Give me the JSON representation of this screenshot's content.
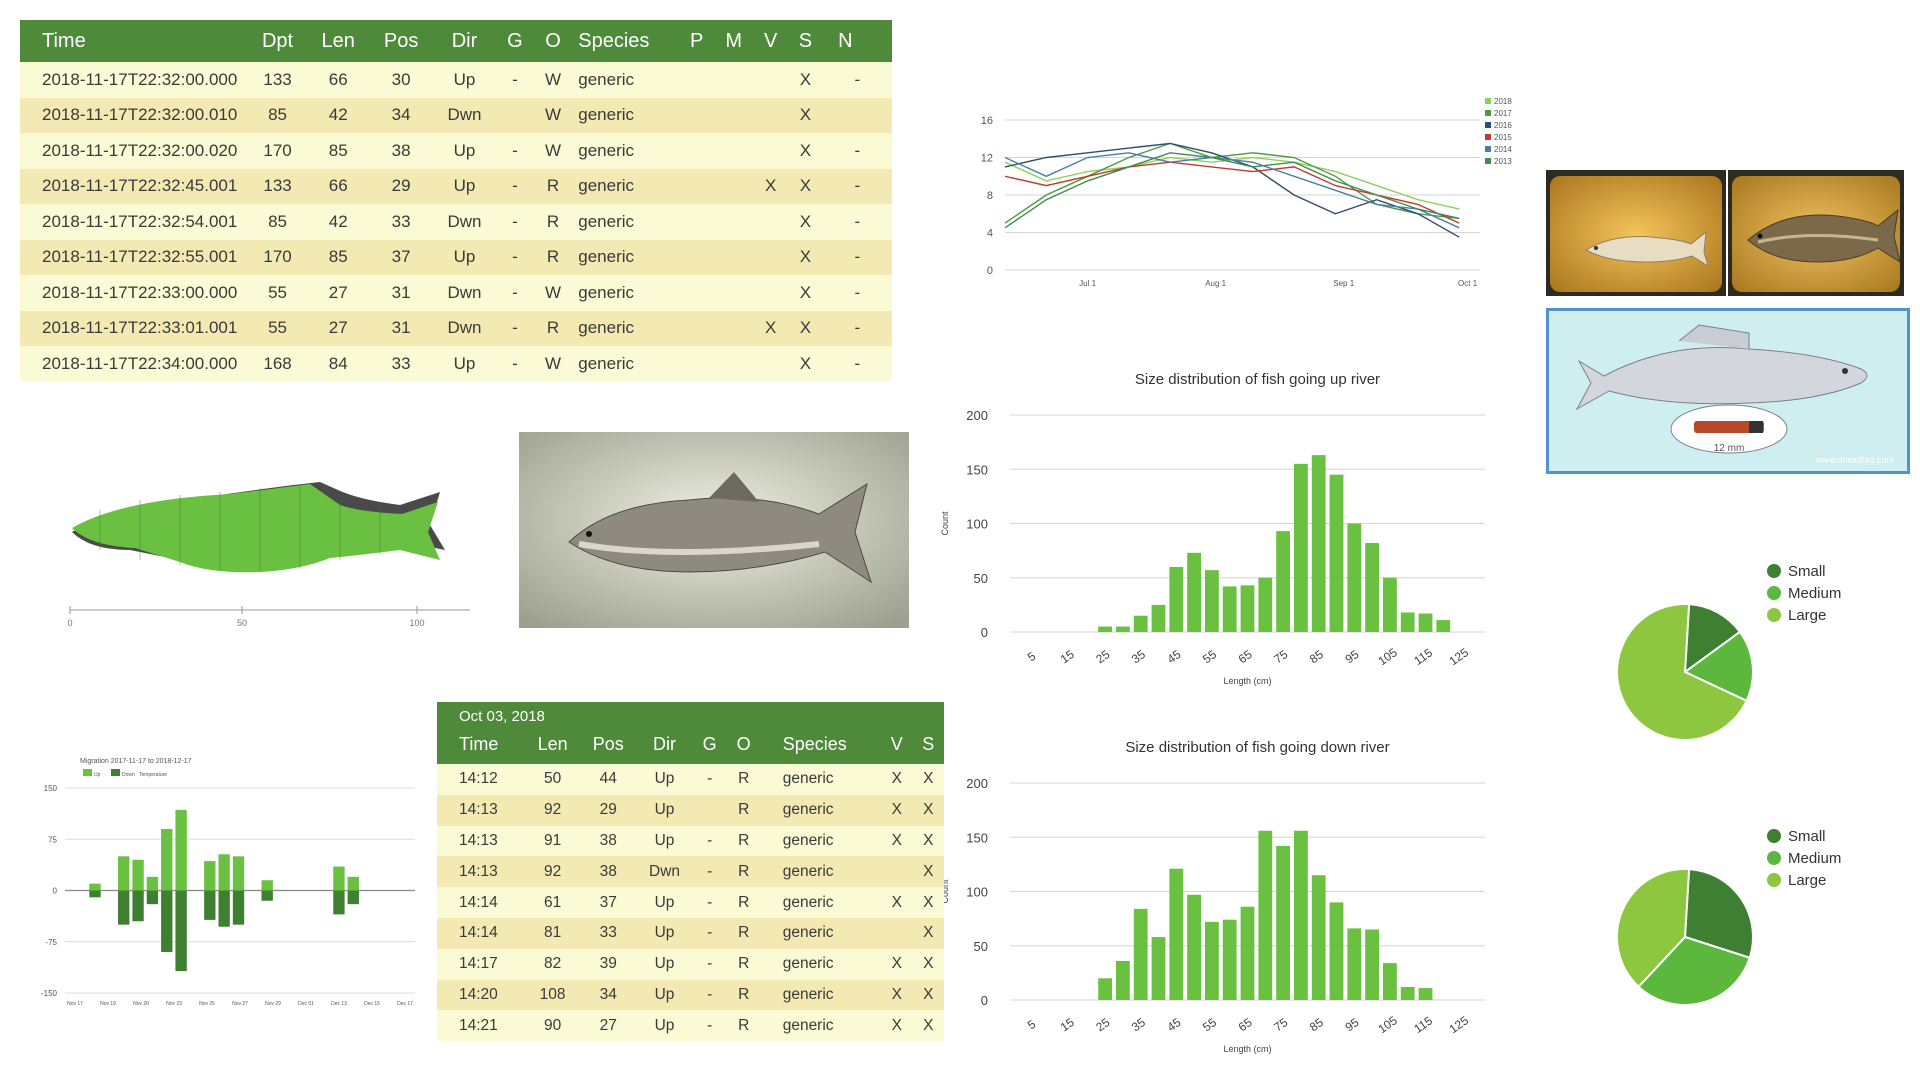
{
  "top_table": {
    "headers": [
      "Time",
      "Dpt",
      "Len",
      "Pos",
      "Dir",
      "G",
      "O",
      "Species",
      "P",
      "M",
      "V",
      "S",
      "N"
    ],
    "rows": [
      [
        "2018-11-17T22:32:00.000",
        "133",
        "66",
        "30",
        "Up",
        "-",
        "W",
        "generic",
        "",
        "",
        "",
        "X",
        "-"
      ],
      [
        "2018-11-17T22:32:00.010",
        "85",
        "42",
        "34",
        "Dwn",
        "",
        "W",
        "generic",
        "",
        "",
        "",
        "X",
        ""
      ],
      [
        "2018-11-17T22:32:00.020",
        "170",
        "85",
        "38",
        "Up",
        "-",
        "W",
        "generic",
        "",
        "",
        "",
        "X",
        "-"
      ],
      [
        "2018-11-17T22:32:45.001",
        "133",
        "66",
        "29",
        "Up",
        "-",
        "R",
        "generic",
        "",
        "",
        "X",
        "X",
        "-"
      ],
      [
        "2018-11-17T22:32:54.001",
        "85",
        "42",
        "33",
        "Dwn",
        "-",
        "R",
        "generic",
        "",
        "",
        "",
        "X",
        "-"
      ],
      [
        "2018-11-17T22:32:55.001",
        "170",
        "85",
        "37",
        "Up",
        "-",
        "R",
        "generic",
        "",
        "",
        "",
        "X",
        "-"
      ],
      [
        "2018-11-17T22:33:00.000",
        "55",
        "27",
        "31",
        "Dwn",
        "-",
        "W",
        "generic",
        "",
        "",
        "",
        "X",
        "-"
      ],
      [
        "2018-11-17T22:33:01.001",
        "55",
        "27",
        "31",
        "Dwn",
        "-",
        "R",
        "generic",
        "",
        "",
        "X",
        "X",
        "-"
      ],
      [
        "2018-11-17T22:34:00.000",
        "168",
        "84",
        "33",
        "Up",
        "-",
        "W",
        "generic",
        "",
        "",
        "",
        "X",
        "-"
      ]
    ]
  },
  "bottom_table": {
    "date": "Oct 03, 2018",
    "headers": [
      "Time",
      "Len",
      "Pos",
      "Dir",
      "G",
      "O",
      "Species",
      "V",
      "S"
    ],
    "rows": [
      [
        "14:12",
        "50",
        "44",
        "Up",
        "-",
        "R",
        "generic",
        "X",
        "X"
      ],
      [
        "14:13",
        "92",
        "29",
        "Up",
        "",
        "R",
        "generic",
        "X",
        "X"
      ],
      [
        "14:13",
        "91",
        "38",
        "Up",
        "-",
        "R",
        "generic",
        "X",
        "X"
      ],
      [
        "14:13",
        "92",
        "38",
        "Dwn",
        "-",
        "R",
        "generic",
        "",
        "X"
      ],
      [
        "14:14",
        "61",
        "37",
        "Up",
        "-",
        "R",
        "generic",
        "X",
        "X"
      ],
      [
        "14:14",
        "81",
        "33",
        "Up",
        "-",
        "R",
        "generic",
        "",
        "X"
      ],
      [
        "14:17",
        "82",
        "39",
        "Up",
        "-",
        "R",
        "generic",
        "X",
        "X"
      ],
      [
        "14:20",
        "108",
        "34",
        "Up",
        "-",
        "R",
        "generic",
        "X",
        "X"
      ],
      [
        "14:21",
        "90",
        "27",
        "Up",
        "-",
        "R",
        "generic",
        "X",
        "X"
      ]
    ]
  },
  "images": {
    "watermark": "www.doeluftag.com",
    "tag_scale": "12 mm"
  },
  "colors": {
    "header_green": "#4e8a3a",
    "bar_green": "#6ac040",
    "row_light": "#fafad4",
    "row_dark": "#f3e9b2",
    "pie_small": "#3f7f32",
    "pie_medium": "#5cb83c",
    "pie_large": "#8dc63f"
  },
  "chart_data": [
    {
      "id": "temperature-lines",
      "type": "line",
      "title": "",
      "xlabel": "",
      "ylabel": "",
      "ylim": [
        0,
        16
      ],
      "y_ticks": [
        0,
        4,
        8,
        12,
        16
      ],
      "x_ticks": [
        "Jul 1",
        "Aug 1",
        "Sep 1",
        "Oct 1"
      ],
      "x_range_days": [
        -20,
        95
      ],
      "legend_position": "top-right",
      "series": [
        {
          "name": "2018",
          "color": "#8fd05a",
          "points": [
            [
              -20,
              11.5
            ],
            [
              -10,
              9.5
            ],
            [
              0,
              10.5
            ],
            [
              10,
              11
            ],
            [
              20,
              12
            ],
            [
              30,
              11.5
            ],
            [
              40,
              12
            ],
            [
              50,
              11.5
            ],
            [
              60,
              10.5
            ],
            [
              70,
              9
            ],
            [
              80,
              7.5
            ],
            [
              90,
              6.5
            ]
          ]
        },
        {
          "name": "2017",
          "color": "#4f9a3c",
          "points": [
            [
              -20,
              5
            ],
            [
              -10,
              8
            ],
            [
              0,
              10
            ],
            [
              10,
              12
            ],
            [
              20,
              13.5
            ],
            [
              30,
              12
            ],
            [
              40,
              12.5
            ],
            [
              50,
              12
            ],
            [
              60,
              10
            ],
            [
              70,
              7
            ],
            [
              80,
              6
            ],
            [
              90,
              5.5
            ]
          ]
        },
        {
          "name": "2016",
          "color": "#2f4f6e",
          "points": [
            [
              -20,
              11
            ],
            [
              -10,
              12
            ],
            [
              0,
              12.5
            ],
            [
              10,
              13
            ],
            [
              20,
              13.5
            ],
            [
              30,
              12.5
            ],
            [
              40,
              11
            ],
            [
              50,
              8
            ],
            [
              60,
              6
            ],
            [
              70,
              7.5
            ],
            [
              80,
              6
            ],
            [
              90,
              3.5
            ]
          ]
        },
        {
          "name": "2015",
          "color": "#c03a2f",
          "points": [
            [
              -20,
              10
            ],
            [
              -10,
              9
            ],
            [
              0,
              10
            ],
            [
              10,
              11
            ],
            [
              20,
              11.5
            ],
            [
              30,
              11
            ],
            [
              40,
              10.5
            ],
            [
              50,
              11
            ],
            [
              60,
              9
            ],
            [
              70,
              8
            ],
            [
              80,
              7
            ],
            [
              90,
              5
            ]
          ]
        },
        {
          "name": "2014",
          "color": "#4a7fa8",
          "points": [
            [
              -20,
              12
            ],
            [
              -10,
              10
            ],
            [
              0,
              12
            ],
            [
              10,
              12.5
            ],
            [
              20,
              11.5
            ],
            [
              30,
              12
            ],
            [
              40,
              11.5
            ],
            [
              50,
              10
            ],
            [
              60,
              8.5
            ],
            [
              70,
              7
            ],
            [
              80,
              6.5
            ],
            [
              90,
              4.5
            ]
          ]
        },
        {
          "name": "2013",
          "color": "#3e8c50",
          "points": [
            [
              -20,
              4.5
            ],
            [
              -10,
              7.5
            ],
            [
              0,
              9.5
            ],
            [
              10,
              11
            ],
            [
              20,
              12.5
            ],
            [
              30,
              12
            ],
            [
              40,
              11
            ],
            [
              50,
              11.5
            ],
            [
              60,
              9.5
            ],
            [
              70,
              8
            ],
            [
              80,
              6.5
            ],
            [
              90,
              5.5
            ]
          ]
        }
      ]
    },
    {
      "id": "size-up",
      "type": "bar",
      "title": "Size distribution of fish going up river",
      "xlabel": "Length (cm)",
      "ylabel": "Count",
      "ylim": [
        0,
        200
      ],
      "y_ticks": [
        0,
        50,
        100,
        150,
        200
      ],
      "categories": [
        "5",
        "10",
        "15",
        "20",
        "25",
        "30",
        "35",
        "40",
        "45",
        "50",
        "55",
        "60",
        "65",
        "70",
        "75",
        "80",
        "85",
        "90",
        "95",
        "100",
        "105",
        "110",
        "115",
        "120",
        "125"
      ],
      "x_tick_labels": [
        "5",
        "15",
        "25",
        "35",
        "45",
        "55",
        "65",
        "75",
        "85",
        "95",
        "105",
        "115",
        "125"
      ],
      "values": [
        0,
        0,
        0,
        0,
        5,
        5,
        15,
        25,
        60,
        73,
        57,
        42,
        43,
        50,
        93,
        155,
        163,
        145,
        100,
        82,
        50,
        18,
        17,
        11,
        0
      ]
    },
    {
      "id": "size-down",
      "type": "bar",
      "title": "Size distribution of fish going down river",
      "xlabel": "Length (cm)",
      "ylabel": "Count",
      "ylim": [
        0,
        200
      ],
      "y_ticks": [
        0,
        50,
        100,
        150,
        200
      ],
      "categories": [
        "5",
        "10",
        "15",
        "20",
        "25",
        "30",
        "35",
        "40",
        "45",
        "50",
        "55",
        "60",
        "65",
        "70",
        "75",
        "80",
        "85",
        "90",
        "95",
        "100",
        "105",
        "110",
        "115",
        "120",
        "125"
      ],
      "x_tick_labels": [
        "5",
        "15",
        "25",
        "35",
        "45",
        "55",
        "65",
        "75",
        "85",
        "95",
        "105",
        "115",
        "125"
      ],
      "values": [
        0,
        0,
        0,
        0,
        20,
        36,
        84,
        58,
        121,
        97,
        72,
        74,
        86,
        156,
        142,
        156,
        115,
        90,
        66,
        65,
        34,
        12,
        11,
        0,
        0
      ]
    },
    {
      "id": "migration",
      "type": "bar",
      "title": "Migration 2017-11-17 to 2018-12-17",
      "legend": [
        "Up",
        "Down",
        "Temperature"
      ],
      "ylim": [
        -150,
        150
      ],
      "y_ticks": [
        150,
        75,
        0,
        -75,
        -150
      ],
      "x_tick_labels": [
        "Nov 17",
        "Nov 19",
        "Nov 20",
        "Nov 23",
        "Nov 25",
        "Nov 27",
        "Nov 29",
        "Dec 01",
        "Dec 13",
        "Dec 15",
        "Dec 17"
      ],
      "up": [
        0,
        10,
        0,
        50,
        45,
        20,
        90,
        118,
        0,
        43,
        53,
        50,
        0,
        15,
        0,
        0,
        0,
        0,
        35,
        20,
        0,
        0,
        0
      ],
      "down": [
        0,
        -10,
        0,
        -50,
        -45,
        -20,
        -90,
        -118,
        0,
        -43,
        -53,
        -50,
        0,
        -15,
        0,
        0,
        0,
        0,
        -35,
        -20,
        0,
        0,
        0
      ],
      "up_alt": [
        0,
        0,
        0,
        0,
        0,
        0,
        0,
        0,
        0,
        0,
        0,
        0,
        0,
        0,
        0,
        0,
        0,
        0,
        0,
        0,
        0,
        0,
        0
      ]
    },
    {
      "id": "pie-up",
      "type": "pie",
      "labels": [
        "Small",
        "Medium",
        "Large"
      ],
      "values": [
        14,
        17,
        69
      ]
    },
    {
      "id": "pie-down",
      "type": "pie",
      "labels": [
        "Small",
        "Medium",
        "Large"
      ],
      "values": [
        29,
        32,
        39
      ]
    }
  ]
}
